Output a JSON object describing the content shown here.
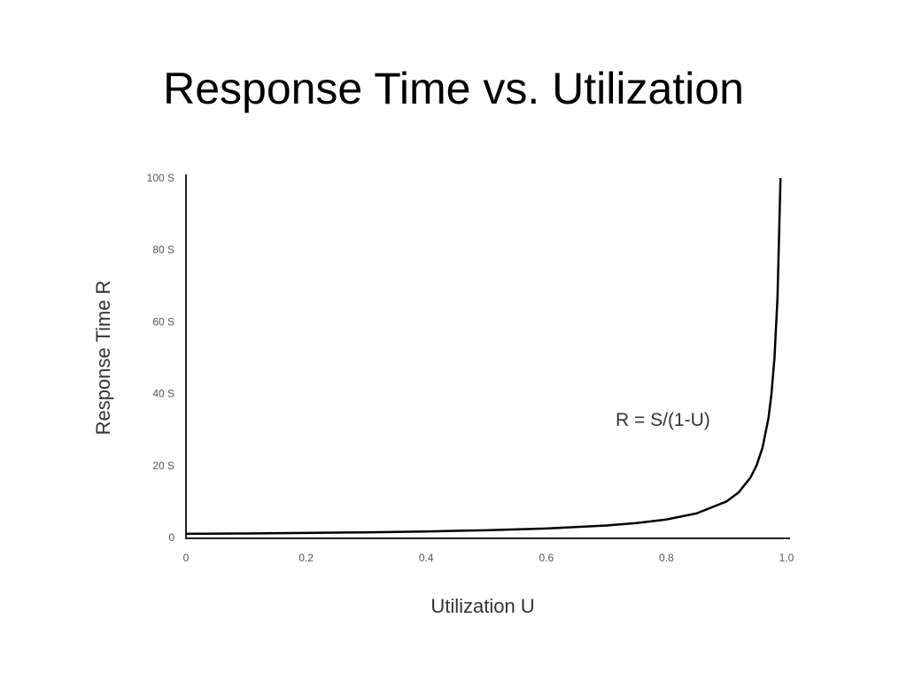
{
  "slide": {
    "title": "Response Time vs. Utilization"
  },
  "chart_data": {
    "type": "line",
    "title": "",
    "xlabel": "Utilization U",
    "ylabel": "Response Time R",
    "xlim": [
      0,
      1.0
    ],
    "ylim": [
      0,
      100
    ],
    "x_ticks": [
      "0",
      "0.2",
      "0.4",
      "0.6",
      "0.8",
      "1.0"
    ],
    "y_ticks": [
      "0",
      "20 S",
      "40 S",
      "60 S",
      "80 S",
      "100 S"
    ],
    "grid": false,
    "annotation": "R = S/(1-U)",
    "line_color": "#000000",
    "series": [
      {
        "x": [
          0,
          0.1,
          0.2,
          0.3,
          0.4,
          0.5,
          0.6,
          0.7,
          0.75,
          0.8,
          0.85,
          0.9,
          0.92,
          0.94,
          0.95,
          0.96,
          0.97,
          0.975,
          0.98,
          0.985,
          0.99
        ],
        "y": [
          1,
          1.11,
          1.25,
          1.43,
          1.67,
          2,
          2.5,
          3.33,
          4,
          5,
          6.67,
          10,
          12.5,
          16.67,
          20,
          25,
          33.33,
          40,
          50,
          66.67,
          100
        ]
      }
    ]
  }
}
